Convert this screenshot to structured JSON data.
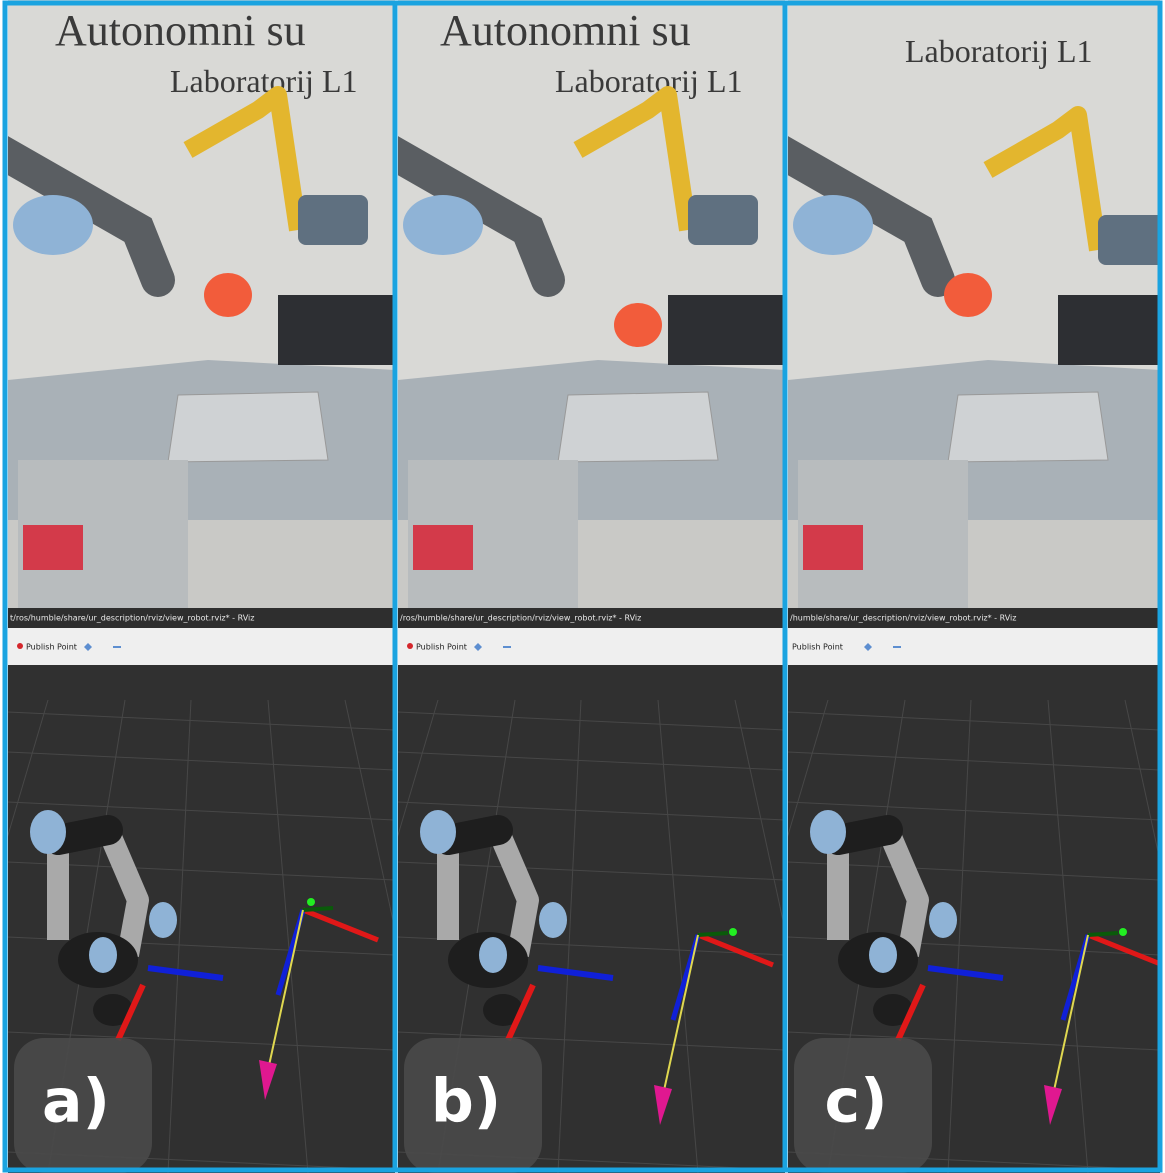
{
  "panels": [
    {
      "label": "a)",
      "wall_texts": [
        "Autonomni su",
        "Laboratorij L1"
      ],
      "title_bar": "t/ros/humble/share/ur_description/rviz/view_robot.rviz* - RViz",
      "tool": "Publish Point"
    },
    {
      "label": "b)",
      "wall_texts": [
        "Autonomni su",
        "Laboratorij L1"
      ],
      "title_bar": "/ros/humble/share/ur_description/rviz/view_robot.rviz* - RViz",
      "tool": "Publish Point"
    },
    {
      "label": "c)",
      "wall_texts": [
        "Laboratorij L1"
      ],
      "title_bar": "/humble/share/ur_description/rviz/view_robot.rviz* - RViz",
      "tool": "Publish Point"
    }
  ]
}
